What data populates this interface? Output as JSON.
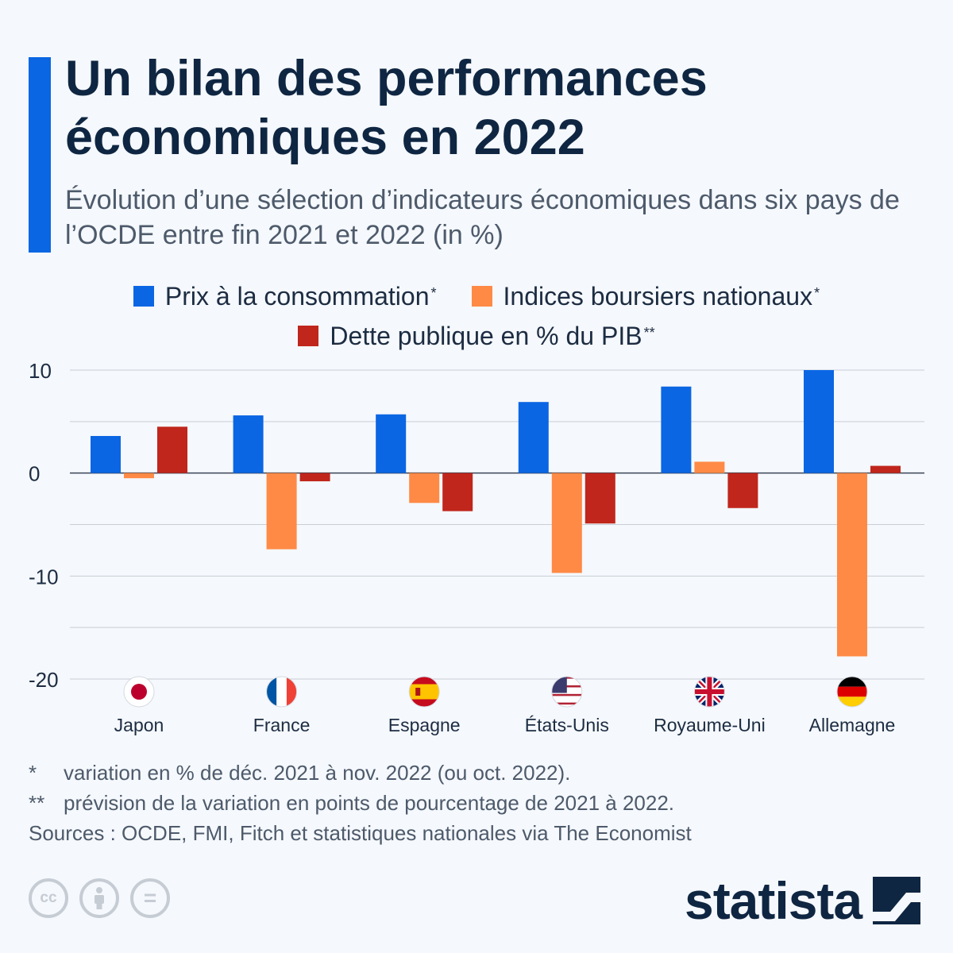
{
  "header": {
    "title": "Un bilan des performances économiques en 2022",
    "subtitle": "Évolution d’une sélection d’indicateurs économiques dans six pays de l’OCDE entre fin 2021 et 2022 (in %)"
  },
  "legend": {
    "items": [
      {
        "label": "Prix à la consommation",
        "mark": "*",
        "color": "#0a66e3"
      },
      {
        "label": "Indices boursiers nationaux",
        "mark": "*",
        "color": "#ff8a45"
      },
      {
        "label": "Dette publique en % du PIB",
        "mark": "**",
        "color": "#c0261c"
      }
    ]
  },
  "chart_data": {
    "type": "bar",
    "categories": [
      "Japon",
      "France",
      "Espagne",
      "États-Unis",
      "Royaume-Uni",
      "Allemagne"
    ],
    "category_icons": [
      "japan-flag-icon",
      "france-flag-icon",
      "spain-flag-icon",
      "usa-flag-icon",
      "uk-flag-icon",
      "germany-flag-icon"
    ],
    "series": [
      {
        "name": "Prix à la consommation",
        "color": "#0a66e3",
        "values": [
          3.6,
          5.6,
          5.7,
          6.9,
          8.4,
          10.0
        ]
      },
      {
        "name": "Indices boursiers nationaux",
        "color": "#ff8a45",
        "values": [
          -0.5,
          -7.4,
          -2.9,
          -9.7,
          1.1,
          -17.8
        ]
      },
      {
        "name": "Dette publique en % du PIB",
        "color": "#c0261c",
        "values": [
          4.5,
          -0.8,
          -3.7,
          -4.9,
          -3.4,
          0.7
        ]
      }
    ],
    "yticks": [
      10,
      0,
      -10,
      -20
    ],
    "ytick_labels": [
      "10",
      "0",
      "-10",
      "-20"
    ],
    "ylim": [
      -20,
      10
    ],
    "grid": true,
    "legend_position": "top"
  },
  "notes": {
    "note1_mark": "*",
    "note1_text": "variation en % de déc. 2021 à nov. 2022 (ou oct. 2022).",
    "note2_mark": "**",
    "note2_text": "prévision de la variation en points de pourcentage de 2021 à 2022.",
    "sources": "Sources : OCDE, FMI, Fitch et statistiques nationales via The Economist"
  },
  "license_icons": {
    "cc": "cc",
    "by": "i",
    "nd": "="
  },
  "brand": {
    "name": "statista"
  }
}
